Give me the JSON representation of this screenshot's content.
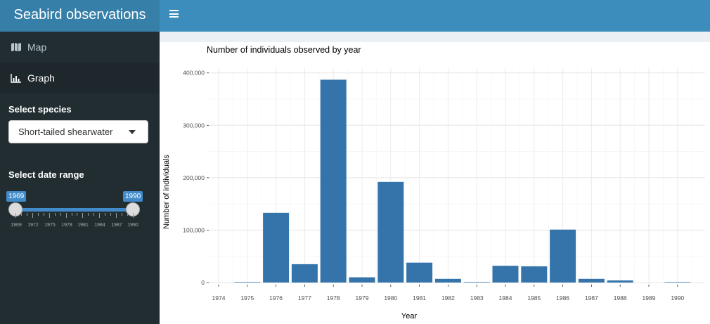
{
  "app": {
    "title": "Seabird observations"
  },
  "sidebar": {
    "items": [
      {
        "label": "Map",
        "icon": "map-icon"
      },
      {
        "label": "Graph",
        "icon": "bar-chart-icon"
      }
    ],
    "species": {
      "label": "Select species",
      "value": "Short-tailed shearwater"
    },
    "date_range": {
      "label": "Select date range",
      "min": 1969,
      "max": 1990,
      "from": "1969",
      "to": "1990",
      "tick_labels": [
        "1969",
        "1972",
        "1975",
        "1978",
        "1981",
        "1984",
        "1987",
        "1990"
      ]
    }
  },
  "colors": {
    "header": "#3c8dbc",
    "logo": "#367fa9",
    "sidebar": "#222d32",
    "bar": "#3574ab"
  },
  "chart_data": {
    "type": "bar",
    "title": "Number of individuals observed by year",
    "xlabel": "Year",
    "ylabel": "Number of individuals",
    "categories": [
      "1975",
      "1976",
      "1977",
      "1978",
      "1979",
      "1980",
      "1981",
      "1982",
      "1983",
      "1984",
      "1985",
      "1986",
      "1987",
      "1988",
      "1989",
      "1990"
    ],
    "values": [
      1000,
      133000,
      35000,
      387000,
      10000,
      192000,
      38000,
      7000,
      1000,
      32000,
      31000,
      101000,
      7000,
      4000,
      0,
      1000
    ],
    "x_tick_labels": [
      "1974",
      "1975",
      "1976",
      "1977",
      "1978",
      "1979",
      "1980",
      "1981",
      "1982",
      "1983",
      "1984",
      "1985",
      "1986",
      "1987",
      "1988",
      "1989",
      "1990"
    ],
    "y_tick_labels": [
      "0",
      "100,000",
      "200,000",
      "300,000",
      "400,000"
    ],
    "y_ticks": [
      0,
      100000,
      200000,
      300000,
      400000
    ],
    "ylim": [
      0,
      405000
    ],
    "grid": true,
    "legend": "none"
  }
}
